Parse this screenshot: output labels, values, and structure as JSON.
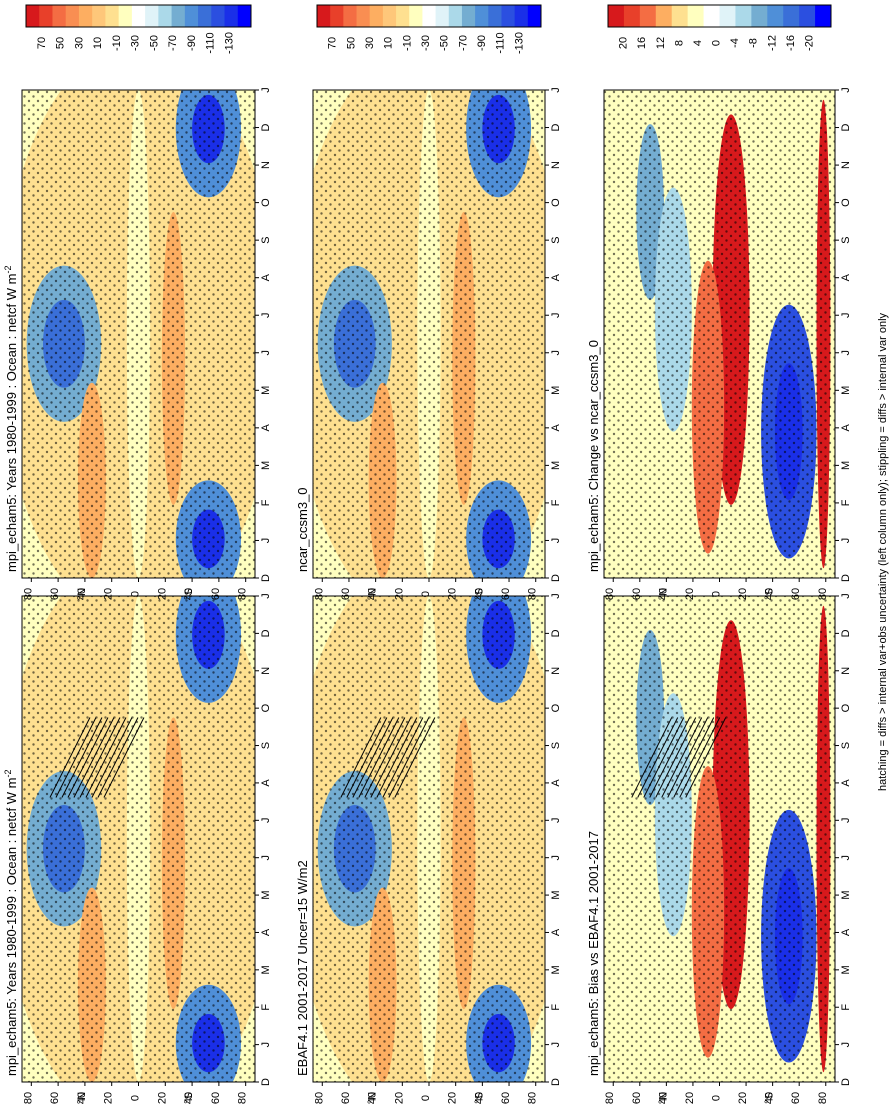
{
  "figure": {
    "footnote": "hatching = diffs > internal var+obs uncertainty (left column only); stippling = diffs > internal var only",
    "orientation": "rotated 90 degrees counter-clockwise"
  },
  "chart_data": [
    {
      "id": "p-left-top",
      "type": "heatmap",
      "title": "mpi_echam5: Years 1980-1999 : Ocean : netcf W m",
      "title_sup": "-2",
      "x_ticks": [
        "D",
        "J",
        "F",
        "M",
        "A",
        "M",
        "J",
        "J",
        "A",
        "S",
        "O",
        "N",
        "D",
        "J"
      ],
      "y_ticks": [
        "80",
        "60",
        "40",
        "20",
        "0",
        "20",
        "40",
        "60",
        "80"
      ],
      "y_lat_units": [
        {
          "label": "°N",
          "between": [
            "60",
            "20"
          ]
        },
        {
          "label": "°S",
          "between": [
            "20",
            "60"
          ]
        }
      ],
      "colorbar": {
        "labels": [
          "70",
          "50",
          "30",
          "10",
          "-10",
          "-30",
          "-50",
          "-70",
          "-90",
          "-110",
          "-130"
        ],
        "range": [
          70,
          -130
        ]
      },
      "hatching": true,
      "stippling": true
    },
    {
      "id": "p-left-mid",
      "type": "heatmap",
      "title": "EBAF4.1 2001-2017 Uncer=15 W/m2",
      "x_ticks": [
        "D",
        "J",
        "F",
        "M",
        "A",
        "M",
        "J",
        "J",
        "A",
        "S",
        "O",
        "N",
        "D",
        "J"
      ],
      "y_ticks": [
        "80",
        "60",
        "40",
        "20",
        "0",
        "20",
        "40",
        "60",
        "80"
      ],
      "y_lat_units": [
        {
          "label": "°N",
          "between": [
            "60",
            "20"
          ]
        },
        {
          "label": "°S",
          "between": [
            "20",
            "60"
          ]
        }
      ],
      "colorbar": {
        "labels": [
          "70",
          "50",
          "30",
          "10",
          "-10",
          "-30",
          "-50",
          "-70",
          "-90",
          "-110",
          "-130"
        ],
        "range": [
          70,
          -130
        ]
      },
      "hatching": true,
      "stippling": true
    },
    {
      "id": "p-left-bot",
      "type": "heatmap",
      "title": "mpi_echam5: Bias vs EBAF4.1 2001-2017",
      "x_ticks": [
        "D",
        "J",
        "F",
        "M",
        "A",
        "M",
        "J",
        "J",
        "A",
        "S",
        "O",
        "N",
        "D",
        "J"
      ],
      "y_ticks": [
        "80",
        "60",
        "40",
        "20",
        "0",
        "20",
        "40",
        "60",
        "80"
      ],
      "y_lat_units": [
        {
          "label": "°N",
          "between": [
            "60",
            "20"
          ]
        },
        {
          "label": "°S",
          "between": [
            "20",
            "60"
          ]
        }
      ],
      "colorbar": {
        "labels": [
          "20",
          "16",
          "12",
          "8",
          "4",
          "0",
          "-4",
          "-8",
          "-12",
          "-16",
          "-20"
        ],
        "range": [
          20,
          -20
        ]
      },
      "hatching": true,
      "stippling": true
    },
    {
      "id": "p-right-top",
      "type": "heatmap",
      "title": "mpi_echam5: Years 1980-1999 : Ocean : netcf W m",
      "title_sup": "-2",
      "x_ticks": [
        "D",
        "J",
        "F",
        "M",
        "A",
        "M",
        "J",
        "J",
        "A",
        "S",
        "O",
        "N",
        "D",
        "J"
      ],
      "y_ticks": [
        "80",
        "60",
        "40",
        "20",
        "0",
        "20",
        "40",
        "60",
        "80"
      ],
      "y_lat_units": [
        {
          "label": "°N",
          "between": [
            "60",
            "20"
          ]
        },
        {
          "label": "°S",
          "between": [
            "20",
            "60"
          ]
        }
      ],
      "colorbar": {
        "labels": [
          "70",
          "50",
          "30",
          "10",
          "-10",
          "-30",
          "-50",
          "-70",
          "-90",
          "-110",
          "-130"
        ],
        "range": [
          70,
          -130
        ]
      },
      "hatching": false,
      "stippling": true
    },
    {
      "id": "p-right-mid",
      "type": "heatmap",
      "title": "ncar_ccsm3_0",
      "x_ticks": [
        "D",
        "J",
        "F",
        "M",
        "A",
        "M",
        "J",
        "J",
        "A",
        "S",
        "O",
        "N",
        "D",
        "J"
      ],
      "y_ticks": [
        "80",
        "60",
        "40",
        "20",
        "0",
        "20",
        "40",
        "60",
        "80"
      ],
      "y_lat_units": [
        {
          "label": "°N",
          "between": [
            "60",
            "20"
          ]
        },
        {
          "label": "°S",
          "between": [
            "20",
            "60"
          ]
        }
      ],
      "colorbar": {
        "labels": [
          "70",
          "50",
          "30",
          "10",
          "-10",
          "-30",
          "-50",
          "-70",
          "-90",
          "-110",
          "-130"
        ],
        "range": [
          70,
          -130
        ]
      },
      "hatching": false,
      "stippling": true
    },
    {
      "id": "p-right-bot",
      "type": "heatmap",
      "title": "mpi_echam5: Change vs ncar_ccsm3_0",
      "x_ticks": [
        "D",
        "J",
        "F",
        "M",
        "A",
        "M",
        "J",
        "J",
        "A",
        "S",
        "O",
        "N",
        "D",
        "J"
      ],
      "y_ticks": [
        "80",
        "60",
        "40",
        "20",
        "0",
        "20",
        "40",
        "60",
        "80"
      ],
      "y_lat_units": [
        {
          "label": "°N",
          "between": [
            "60",
            "20"
          ]
        },
        {
          "label": "°S",
          "between": [
            "20",
            "60"
          ]
        }
      ],
      "colorbar": {
        "labels": [
          "20",
          "16",
          "12",
          "8",
          "4",
          "0",
          "-4",
          "-8",
          "-12",
          "-16",
          "-20"
        ],
        "range": [
          20,
          -20
        ]
      },
      "hatching": false,
      "stippling": true
    }
  ],
  "palettes": {
    "wide": [
      "#d7191c",
      "#e8402a",
      "#f46d43",
      "#f98e52",
      "#fdae61",
      "#fec77a",
      "#fee090",
      "#ffffbf",
      "#ffffff",
      "#e0f3f8",
      "#abd9e9",
      "#74add1",
      "#4f8fd8",
      "#3a6fd8",
      "#2b4fe0",
      "#1a2fe8",
      "#0000ff"
    ],
    "narrow": [
      "#d7191c",
      "#e8402a",
      "#f46d43",
      "#fdae61",
      "#fee090",
      "#ffffbf",
      "#ffffff",
      "#e0f3f8",
      "#abd9e9",
      "#74add1",
      "#4f8fd8",
      "#3a6fd8",
      "#2b4fe0",
      "#0000ff"
    ]
  }
}
